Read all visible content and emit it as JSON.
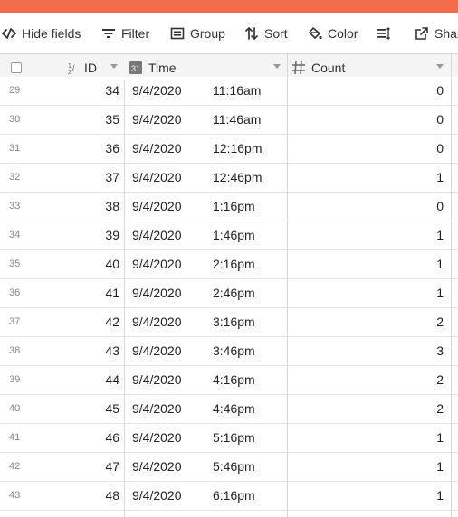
{
  "toolbar": {
    "hide_fields": "Hide fields",
    "filter": "Filter",
    "group": "Group",
    "sort": "Sort",
    "color": "Color",
    "share": "Share"
  },
  "columns": {
    "id": "ID",
    "time": "Time",
    "count": "Count"
  },
  "rows": [
    {
      "n": "29",
      "id": "34",
      "date": "9/4/2020",
      "time": "11:16am",
      "count": "0"
    },
    {
      "n": "30",
      "id": "35",
      "date": "9/4/2020",
      "time": "11:46am",
      "count": "0"
    },
    {
      "n": "31",
      "id": "36",
      "date": "9/4/2020",
      "time": "12:16pm",
      "count": "0"
    },
    {
      "n": "32",
      "id": "37",
      "date": "9/4/2020",
      "time": "12:46pm",
      "count": "1"
    },
    {
      "n": "33",
      "id": "38",
      "date": "9/4/2020",
      "time": "1:16pm",
      "count": "0"
    },
    {
      "n": "34",
      "id": "39",
      "date": "9/4/2020",
      "time": "1:46pm",
      "count": "1"
    },
    {
      "n": "35",
      "id": "40",
      "date": "9/4/2020",
      "time": "2:16pm",
      "count": "1"
    },
    {
      "n": "36",
      "id": "41",
      "date": "9/4/2020",
      "time": "2:46pm",
      "count": "1"
    },
    {
      "n": "37",
      "id": "42",
      "date": "9/4/2020",
      "time": "3:16pm",
      "count": "2"
    },
    {
      "n": "38",
      "id": "43",
      "date": "9/4/2020",
      "time": "3:46pm",
      "count": "3"
    },
    {
      "n": "39",
      "id": "44",
      "date": "9/4/2020",
      "time": "4:16pm",
      "count": "2"
    },
    {
      "n": "40",
      "id": "45",
      "date": "9/4/2020",
      "time": "4:46pm",
      "count": "2"
    },
    {
      "n": "41",
      "id": "46",
      "date": "9/4/2020",
      "time": "5:16pm",
      "count": "1"
    },
    {
      "n": "42",
      "id": "47",
      "date": "9/4/2020",
      "time": "5:46pm",
      "count": "1"
    },
    {
      "n": "43",
      "id": "48",
      "date": "9/4/2020",
      "time": "6:16pm",
      "count": "1"
    }
  ],
  "colors": {
    "accent_bar": "#f26b4a",
    "header_bg": "#f4f4f4",
    "grid_line": "#e6e6e6"
  },
  "icons": [
    "hide-fields-icon",
    "filter-icon",
    "group-icon",
    "sort-icon",
    "color-icon",
    "row-height-icon",
    "share-icon",
    "checkbox-icon",
    "number-field-icon",
    "formula-field-icon",
    "hash-field-icon"
  ]
}
